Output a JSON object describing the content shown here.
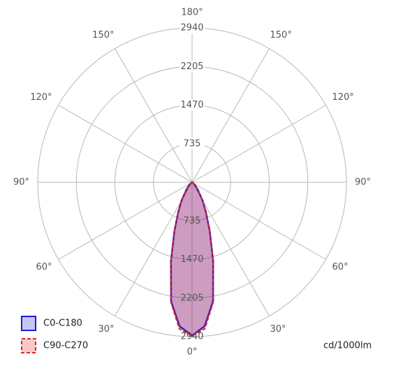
{
  "chart_data": {
    "type": "polar",
    "unit_label": "cd/1000lm",
    "rlim": [
      0,
      2940
    ],
    "rticks": [
      735,
      1470,
      2205,
      2940
    ],
    "angle_ticks": [
      {
        "value": 0,
        "label": "0°"
      },
      {
        "value": 30,
        "label": "30°"
      },
      {
        "value": 60,
        "label": "60°"
      },
      {
        "value": 90,
        "label": "90°"
      },
      {
        "value": 120,
        "label": "120°"
      },
      {
        "value": 150,
        "label": "150°"
      },
      {
        "value": 180,
        "label": "180°"
      },
      {
        "value": -150,
        "label": "150°"
      },
      {
        "value": -120,
        "label": "120°"
      },
      {
        "value": -90,
        "label": "90°"
      },
      {
        "value": -60,
        "label": "60°"
      },
      {
        "value": -30,
        "label": "30°"
      }
    ],
    "x": [
      -90,
      -70,
      -60,
      -50,
      -40,
      -30,
      -25,
      -20,
      -15,
      -10,
      -5,
      0,
      5,
      10,
      15,
      20,
      25,
      30,
      40,
      50,
      60,
      70,
      90
    ],
    "series": [
      {
        "name": "C0-C180",
        "color": "#1c1cd6",
        "values": [
          0,
          0,
          10,
          50,
          150,
          400,
          620,
          980,
          1550,
          2300,
          2750,
          2920,
          2750,
          2300,
          1550,
          980,
          620,
          400,
          150,
          50,
          10,
          0,
          0
        ]
      },
      {
        "name": "C90-C270",
        "color": "#e02424",
        "values": [
          0,
          0,
          10,
          50,
          150,
          400,
          620,
          990,
          1560,
          2320,
          2800,
          2930,
          2800,
          2320,
          1560,
          990,
          620,
          400,
          150,
          50,
          10,
          0,
          0
        ]
      }
    ]
  }
}
